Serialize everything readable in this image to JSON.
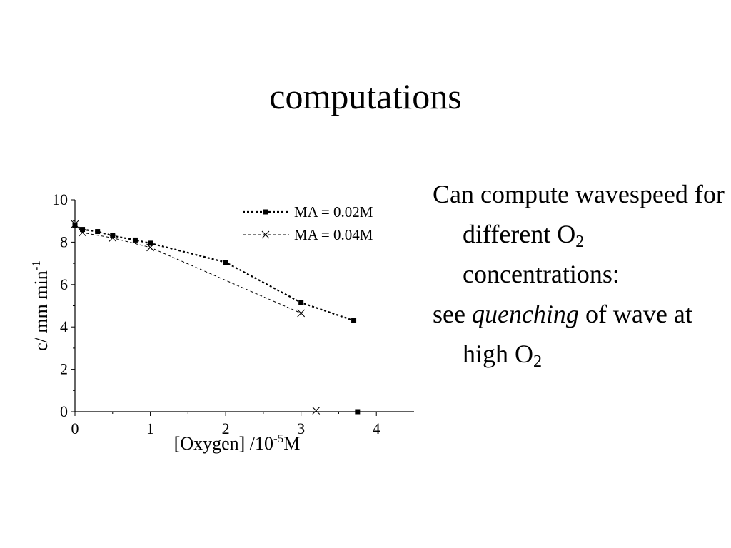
{
  "slide": {
    "title": "computations",
    "bullet1": {
      "text": "Can compute wavespeed for different O",
      "sub": "2",
      "tail": " concentrations:"
    },
    "bullet2": {
      "pre": "see ",
      "em": "quenching",
      "mid": " of wave at high O",
      "sub": "2"
    }
  },
  "chart_data": {
    "type": "line",
    "title": "",
    "xlabel": "[Oxygen] /10",
    "xlabel_sup": "-5",
    "xlabel_tail": "M",
    "ylabel": "c/ mm min",
    "ylabel_sup": "-1",
    "xlim": [
      0,
      4.5
    ],
    "ylim": [
      0,
      10
    ],
    "xticks": [
      0,
      1,
      2,
      3,
      4
    ],
    "yticks": [
      0,
      2,
      4,
      6,
      8,
      10
    ],
    "grid": false,
    "legend_position": "top-right",
    "series": [
      {
        "name": "MA = 0.02M",
        "marker": "square",
        "line": "dotted",
        "x": [
          0,
          0.1,
          0.3,
          0.5,
          0.8,
          1.0,
          2.0,
          3.0,
          3.7
        ],
        "y": [
          8.8,
          8.6,
          8.5,
          8.3,
          8.1,
          7.95,
          7.05,
          5.15,
          4.3
        ]
      },
      {
        "name": "MA = 0.04M",
        "marker": "x",
        "line": "dashed",
        "x": [
          0,
          0.1,
          0.5,
          1.0,
          3.0
        ],
        "y": [
          8.85,
          8.45,
          8.2,
          7.75,
          4.65
        ]
      }
    ],
    "extra_points": [
      {
        "series": 1,
        "x": 3.2,
        "y": 0.05
      },
      {
        "series": 0,
        "x": 3.75,
        "y": 0.0
      }
    ]
  }
}
